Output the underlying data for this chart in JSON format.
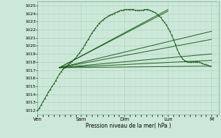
{
  "xlabel": "Pression niveau de la mer( hPa )",
  "bg_color": "#cce8d8",
  "grid_major_color": "#aaccbb",
  "grid_minor_color": "#c0ddd0",
  "line_color": "#1a5c1a",
  "ylim": [
    1011.5,
    1025.5
  ],
  "yticks": [
    1012,
    1013,
    1014,
    1015,
    1016,
    1017,
    1018,
    1019,
    1020,
    1021,
    1022,
    1023,
    1024,
    1025
  ],
  "xtick_labels": [
    "Ven",
    "Sam",
    "Dim",
    "Lun",
    "M"
  ],
  "xtick_positions": [
    0,
    24,
    48,
    72,
    96
  ],
  "xlim": [
    0,
    100
  ],
  "pivot_x": 12,
  "pivot_y": 1017.3,
  "main_series_x": [
    0,
    1,
    2,
    3,
    4,
    5,
    6,
    7,
    8,
    9,
    10,
    11,
    12,
    13,
    14,
    15,
    16,
    17,
    18,
    19,
    20,
    21,
    22,
    23,
    24,
    25,
    26,
    27,
    28,
    29,
    30,
    31,
    32,
    33,
    34,
    35,
    36,
    37,
    38,
    39,
    40,
    41,
    42,
    43,
    44,
    45,
    46,
    47,
    48,
    49,
    50,
    51,
    52,
    53,
    54,
    55,
    56,
    57,
    58,
    59,
    60,
    61,
    62,
    63,
    64,
    65,
    66,
    67,
    68,
    69,
    70,
    71,
    72,
    73,
    74,
    75,
    76,
    77,
    78,
    79,
    80,
    81,
    82,
    83,
    84,
    85,
    86,
    87,
    88,
    89,
    90,
    91,
    92,
    93,
    94,
    95
  ],
  "main_series_y": [
    1012.0,
    1012.3,
    1012.7,
    1013.1,
    1013.5,
    1013.9,
    1014.3,
    1014.6,
    1015.0,
    1015.3,
    1015.7,
    1016.1,
    1016.5,
    1016.8,
    1017.1,
    1017.3,
    1017.5,
    1017.7,
    1017.9,
    1018.1,
    1018.3,
    1018.5,
    1018.8,
    1019.1,
    1019.4,
    1019.7,
    1020.1,
    1020.5,
    1020.8,
    1021.2,
    1021.6,
    1021.9,
    1022.2,
    1022.5,
    1022.8,
    1023.0,
    1023.2,
    1023.4,
    1023.5,
    1023.7,
    1023.8,
    1023.9,
    1024.0,
    1024.1,
    1024.2,
    1024.3,
    1024.4,
    1024.4,
    1024.5,
    1024.5,
    1024.5,
    1024.5,
    1024.5,
    1024.5,
    1024.4,
    1024.4,
    1024.4,
    1024.4,
    1024.4,
    1024.5,
    1024.5,
    1024.5,
    1024.4,
    1024.3,
    1024.2,
    1024.1,
    1023.9,
    1023.7,
    1023.5,
    1023.2,
    1022.9,
    1022.6,
    1022.2,
    1021.8,
    1021.3,
    1020.8,
    1020.2,
    1019.6,
    1019.1,
    1018.7,
    1018.4,
    1018.2,
    1018.1,
    1018.0,
    1018.0,
    1018.0,
    1018.0,
    1018.0,
    1018.0,
    1018.0,
    1017.9,
    1017.8,
    1017.7,
    1017.7,
    1017.6,
    1017.5
  ],
  "fan_lines": [
    {
      "x0": 12,
      "y0": 1017.3,
      "x1": 96,
      "y1": 1017.5
    },
    {
      "x0": 12,
      "y0": 1017.3,
      "x1": 96,
      "y1": 1018.2
    },
    {
      "x0": 12,
      "y0": 1017.3,
      "x1": 96,
      "y1": 1019.0
    },
    {
      "x0": 12,
      "y0": 1017.3,
      "x1": 96,
      "y1": 1020.8
    },
    {
      "x0": 12,
      "y0": 1017.3,
      "x1": 96,
      "y1": 1021.8
    },
    {
      "x0": 12,
      "y0": 1017.3,
      "x1": 72,
      "y1": 1024.3
    },
    {
      "x0": 12,
      "y0": 1017.3,
      "x1": 72,
      "y1": 1024.5
    }
  ]
}
